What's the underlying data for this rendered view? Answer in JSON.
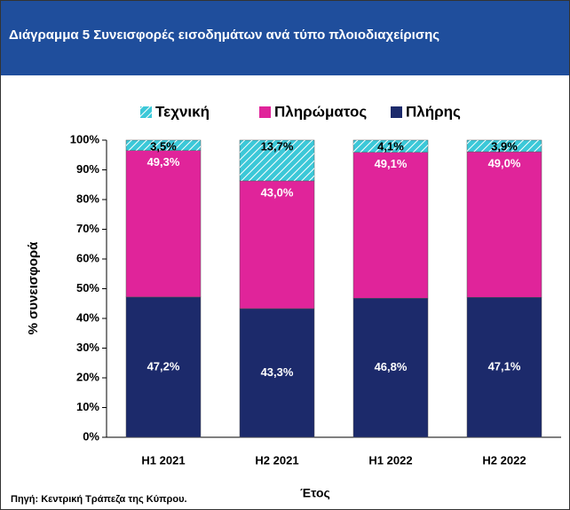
{
  "chart_data": {
    "type": "stacked_bar",
    "title": "Διάγραμμα 5  Συνεισφορές εισοδημάτων ανά τύπο πλοιοδιαχείρισης",
    "y_label": "% συνεισφορά",
    "x_label": "Έτος",
    "source": "Πηγή: Κεντρική Τράπεζα της Κύπρου.",
    "categories": [
      "H1 2021",
      "H2 2021",
      "H1 2022",
      "H2 2022"
    ],
    "series": [
      {
        "name": "Πλήρης",
        "color": "#1c2a6b",
        "values": [
          47.2,
          43.3,
          46.8,
          47.1
        ],
        "value_labels": [
          "47,2%",
          "43,3%",
          "46,8%",
          "47,1%"
        ]
      },
      {
        "name": "Πληρώματος",
        "color": "#e0249a",
        "values": [
          49.3,
          43.0,
          49.1,
          49.0
        ],
        "value_labels": [
          "49,3%",
          "43,0%",
          "49,1%",
          "49,0%"
        ]
      },
      {
        "name": "Τεχνική",
        "color": "#3cc8d8",
        "values": [
          3.5,
          13.7,
          4.1,
          3.9
        ],
        "value_labels": [
          "3,5%",
          "13,7%",
          "4,1%",
          "3,9%"
        ]
      }
    ],
    "ylim": [
      0,
      100
    ],
    "yticks": [
      {
        "value": 0,
        "label": "0%"
      },
      {
        "value": 10,
        "label": "10%"
      },
      {
        "value": 20,
        "label": "20%"
      },
      {
        "value": 30,
        "label": "30%"
      },
      {
        "value": 40,
        "label": "40%"
      },
      {
        "value": 50,
        "label": "50%"
      },
      {
        "value": 60,
        "label": "60%"
      },
      {
        "value": 70,
        "label": "70%"
      },
      {
        "value": 80,
        "label": "80%"
      },
      {
        "value": 90,
        "label": "90%"
      },
      {
        "value": 100,
        "label": "100%"
      }
    ],
    "grid": false
  }
}
